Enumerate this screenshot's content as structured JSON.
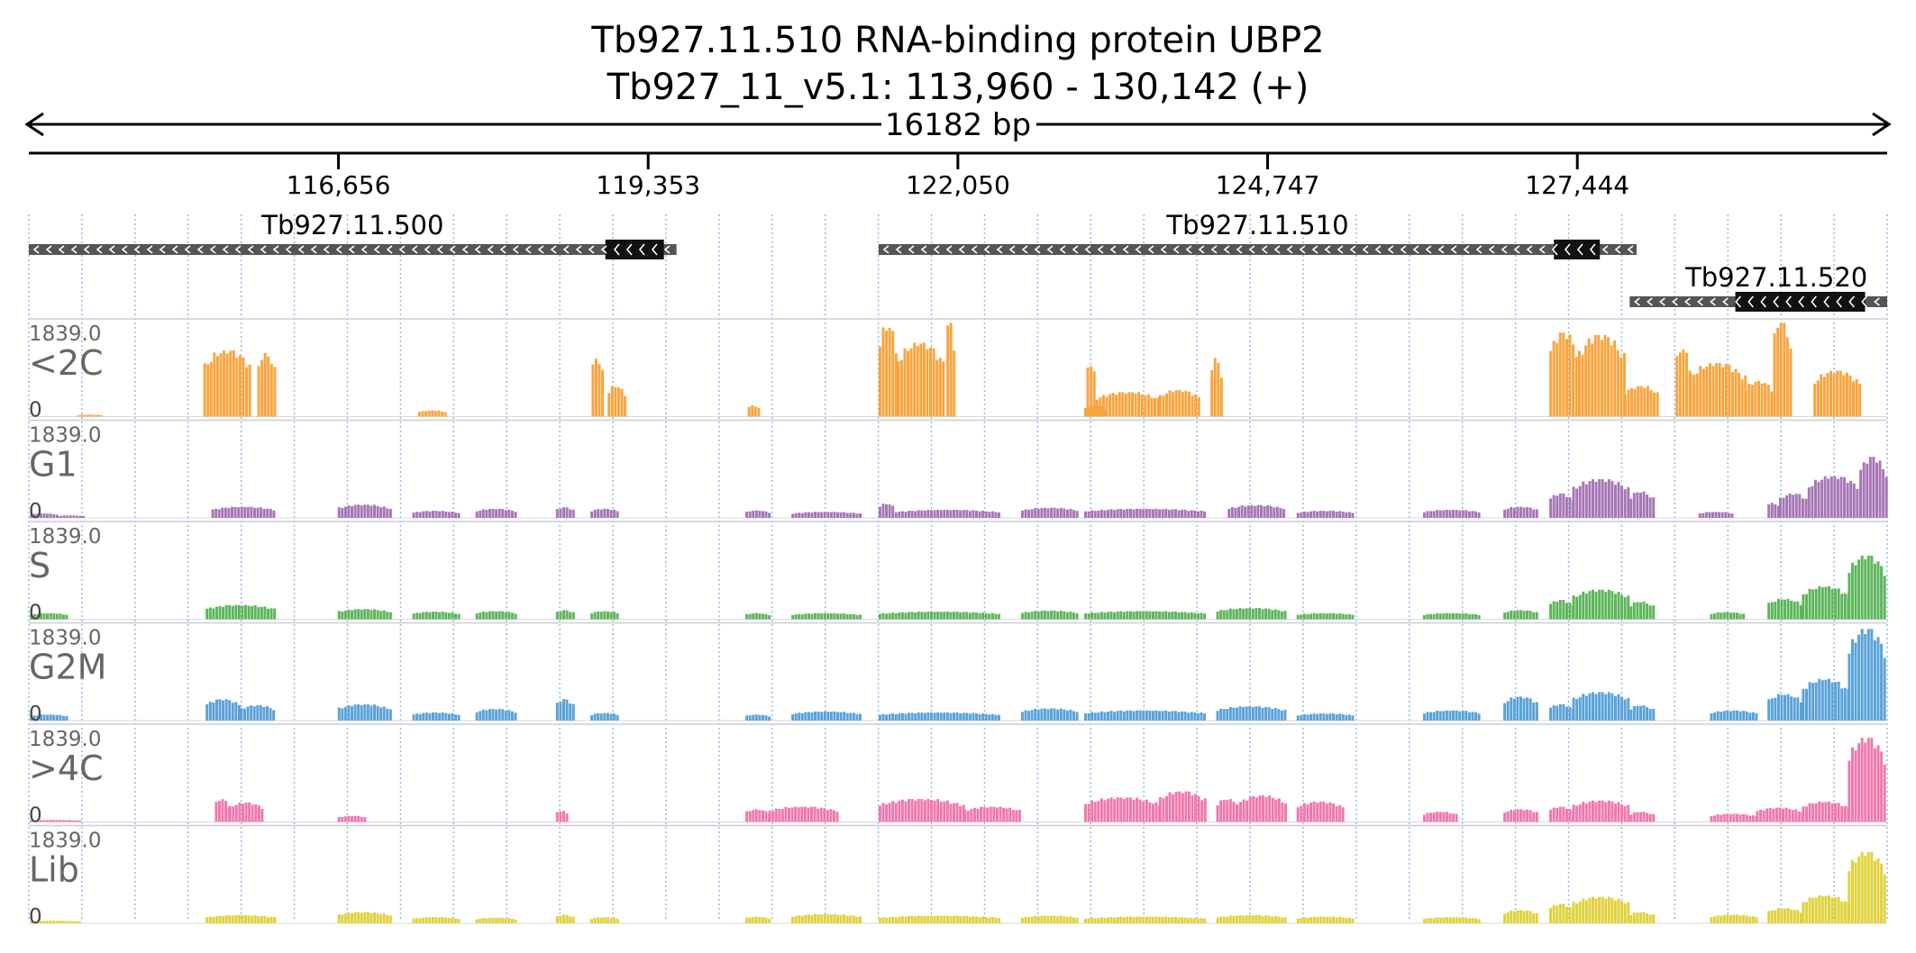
{
  "header": {
    "title_line1": "Tb927.11.510  RNA-binding protein  UBP2",
    "title_line2": "Tb927_11_v5.1: 113,960 - 130,142 (+)",
    "span_label": "16182 bp"
  },
  "ruler": {
    "start": 113960,
    "end": 130142,
    "ticks": [
      {
        "pos": 116656,
        "label": "116,656"
      },
      {
        "pos": 119353,
        "label": "119,353"
      },
      {
        "pos": 122050,
        "label": "122,050"
      },
      {
        "pos": 124747,
        "label": "124,747"
      },
      {
        "pos": 127444,
        "label": "127,444"
      }
    ]
  },
  "genes": [
    {
      "name": "Tb927.11.500",
      "start": 113960,
      "end": 119600,
      "cds_start": 118980,
      "cds_end": 119490,
      "strand": "-",
      "row": 0
    },
    {
      "name": "Tb927.11.510",
      "start": 121360,
      "end": 127960,
      "cds_start": 127240,
      "cds_end": 127640,
      "strand": "-",
      "row": 0
    },
    {
      "name": "Tb927.11.520",
      "start": 127900,
      "end": 130142,
      "cds_start": 128820,
      "cds_end": 129950,
      "strand": "-",
      "row": 1
    }
  ],
  "colors": {
    "<2C": "#f9a43e",
    "G1": "#a677b5",
    "S": "#5db55c",
    "G2M": "#5aa2d9",
    ">4C": "#f078ad",
    "Lib": "#e0d23c",
    "gene_utr": "#555555",
    "gene_cds": "#111111",
    "grid": "#8fb7e6"
  },
  "tracks": [
    {
      "label": "<2C",
      "max_label": "1839.0",
      "min_label": "0",
      "color": "#f9a43e",
      "max": 1839,
      "peaks": [
        [
          114380,
          114600,
          40
        ],
        [
          115480,
          115900,
          1300
        ],
        [
          115950,
          116100,
          1250
        ],
        [
          117350,
          117600,
          120
        ],
        [
          118860,
          118960,
          1150
        ],
        [
          119000,
          119150,
          600
        ],
        [
          120220,
          120320,
          220
        ],
        [
          121360,
          121520,
          1780
        ],
        [
          121520,
          121920,
          1450
        ],
        [
          121950,
          122020,
          1900
        ],
        [
          123150,
          123330,
          220
        ],
        [
          123170,
          123250,
          1050
        ],
        [
          123250,
          123800,
          480
        ],
        [
          123800,
          124150,
          520
        ],
        [
          124250,
          124340,
          1150
        ],
        [
          127200,
          127450,
          1650
        ],
        [
          127450,
          127850,
          1600
        ],
        [
          127850,
          128150,
          600
        ],
        [
          128300,
          128420,
          1350
        ],
        [
          128420,
          128900,
          1050
        ],
        [
          128900,
          129150,
          700
        ],
        [
          129150,
          129300,
          1900
        ],
        [
          129500,
          129900,
          900
        ]
      ]
    },
    {
      "label": "G1",
      "max_label": "1839.0",
      "min_label": "0",
      "color": "#a677b5",
      "max": 1839,
      "peaks": [
        [
          113970,
          114200,
          90
        ],
        [
          114200,
          114450,
          50
        ],
        [
          115550,
          116100,
          220
        ],
        [
          116650,
          117100,
          260
        ],
        [
          117300,
          117700,
          140
        ],
        [
          117850,
          118200,
          180
        ],
        [
          118550,
          118700,
          210
        ],
        [
          118850,
          119100,
          180
        ],
        [
          120200,
          120400,
          150
        ],
        [
          120600,
          121200,
          120
        ],
        [
          121360,
          121500,
          280
        ],
        [
          121500,
          122400,
          160
        ],
        [
          122600,
          123100,
          200
        ],
        [
          123150,
          124200,
          180
        ],
        [
          124400,
          124900,
          250
        ],
        [
          125000,
          125500,
          140
        ],
        [
          126100,
          126600,
          160
        ],
        [
          126800,
          127100,
          220
        ],
        [
          127200,
          127400,
          480
        ],
        [
          127400,
          127900,
          760
        ],
        [
          127900,
          128100,
          520
        ],
        [
          128500,
          128800,
          120
        ],
        [
          129100,
          129200,
          300
        ],
        [
          129200,
          129450,
          480
        ],
        [
          129450,
          129900,
          820
        ],
        [
          129900,
          130130,
          1200
        ]
      ]
    },
    {
      "label": "S",
      "max_label": "1839.0",
      "min_label": "0",
      "color": "#5db55c",
      "max": 1839,
      "peaks": [
        [
          113970,
          114300,
          120
        ],
        [
          115500,
          116100,
          280
        ],
        [
          116650,
          117100,
          200
        ],
        [
          117300,
          117700,
          150
        ],
        [
          117850,
          118200,
          160
        ],
        [
          118550,
          118700,
          180
        ],
        [
          118850,
          119100,
          160
        ],
        [
          120200,
          120400,
          120
        ],
        [
          120600,
          121200,
          120
        ],
        [
          121360,
          122400,
          150
        ],
        [
          122600,
          123100,
          170
        ],
        [
          123150,
          124200,
          160
        ],
        [
          124300,
          124900,
          220
        ],
        [
          125000,
          125500,
          120
        ],
        [
          126100,
          126600,
          120
        ],
        [
          126800,
          127100,
          180
        ],
        [
          127200,
          127400,
          380
        ],
        [
          127400,
          127900,
          580
        ],
        [
          127900,
          128100,
          350
        ],
        [
          128600,
          128900,
          140
        ],
        [
          129100,
          129400,
          400
        ],
        [
          129400,
          129800,
          650
        ],
        [
          129800,
          130130,
          1250
        ]
      ]
    },
    {
      "label": "G2M",
      "max_label": "1839.0",
      "min_label": "0",
      "color": "#5aa2d9",
      "max": 1839,
      "peaks": [
        [
          113970,
          114300,
          120
        ],
        [
          115500,
          115800,
          420
        ],
        [
          115800,
          116100,
          300
        ],
        [
          116650,
          117100,
          320
        ],
        [
          117300,
          117700,
          160
        ],
        [
          117850,
          118200,
          230
        ],
        [
          118550,
          118700,
          420
        ],
        [
          118850,
          119100,
          150
        ],
        [
          120200,
          120400,
          120
        ],
        [
          120600,
          121200,
          180
        ],
        [
          121360,
          122400,
          160
        ],
        [
          122600,
          123100,
          240
        ],
        [
          123150,
          124200,
          200
        ],
        [
          124300,
          124900,
          280
        ],
        [
          125000,
          125500,
          140
        ],
        [
          126100,
          126600,
          200
        ],
        [
          126800,
          127100,
          470
        ],
        [
          127200,
          127400,
          320
        ],
        [
          127400,
          127900,
          560
        ],
        [
          127900,
          128100,
          300
        ],
        [
          128600,
          129000,
          200
        ],
        [
          129100,
          129400,
          520
        ],
        [
          129400,
          129800,
          820
        ],
        [
          129800,
          130130,
          1800
        ]
      ]
    },
    {
      "label": ">4C",
      "max_label": "1839.0",
      "min_label": "0",
      "color": "#f078ad",
      "max": 1839,
      "peaks": [
        [
          113970,
          114400,
          40
        ],
        [
          115580,
          115700,
          450
        ],
        [
          115700,
          116000,
          380
        ],
        [
          116650,
          116900,
          120
        ],
        [
          118550,
          118650,
          220
        ],
        [
          120200,
          120400,
          250
        ],
        [
          120400,
          121000,
          300
        ],
        [
          121360,
          122100,
          450
        ],
        [
          122100,
          122600,
          300
        ],
        [
          123150,
          123800,
          480
        ],
        [
          123800,
          124200,
          600
        ],
        [
          124300,
          124500,
          450
        ],
        [
          124500,
          124900,
          520
        ],
        [
          125000,
          125400,
          400
        ],
        [
          126100,
          126400,
          200
        ],
        [
          126800,
          127100,
          250
        ],
        [
          127200,
          127400,
          300
        ],
        [
          127400,
          127900,
          420
        ],
        [
          127900,
          128100,
          200
        ],
        [
          128600,
          129000,
          160
        ],
        [
          129000,
          129400,
          280
        ],
        [
          129400,
          129800,
          400
        ],
        [
          129800,
          130130,
          1650
        ]
      ]
    },
    {
      "label": "Lib",
      "max_label": "1839.0",
      "min_label": "0",
      "color": "#e0d23c",
      "max": 1839,
      "peaks": [
        [
          113970,
          114400,
          50
        ],
        [
          115500,
          116100,
          160
        ],
        [
          116650,
          117100,
          220
        ],
        [
          117300,
          117700,
          120
        ],
        [
          117850,
          118200,
          110
        ],
        [
          118550,
          118700,
          170
        ],
        [
          118850,
          119100,
          120
        ],
        [
          120200,
          120400,
          130
        ],
        [
          120600,
          121200,
          180
        ],
        [
          121360,
          122400,
          150
        ],
        [
          122600,
          123100,
          150
        ],
        [
          123150,
          124200,
          130
        ],
        [
          124300,
          124900,
          160
        ],
        [
          125000,
          125500,
          130
        ],
        [
          126100,
          126600,
          120
        ],
        [
          126800,
          127100,
          260
        ],
        [
          127200,
          127400,
          380
        ],
        [
          127400,
          127900,
          520
        ],
        [
          127900,
          128100,
          220
        ],
        [
          128600,
          129000,
          170
        ],
        [
          129100,
          129400,
          300
        ],
        [
          129400,
          129800,
          550
        ],
        [
          129800,
          130130,
          1400
        ]
      ]
    }
  ]
}
